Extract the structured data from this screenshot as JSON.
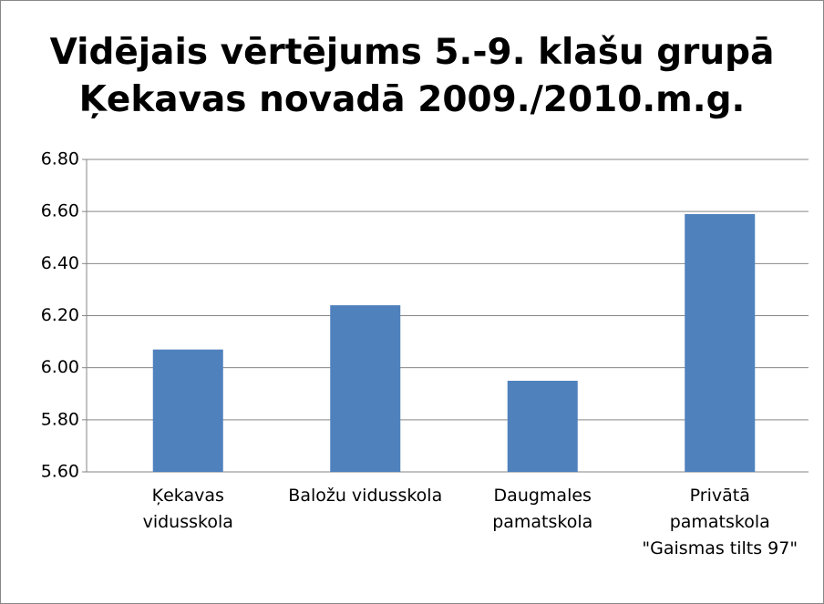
{
  "chart_data": {
    "type": "bar",
    "title": "Vidējais vērtējums 5.-9. klašu grupā\nĶekavas novadā 2009./2010.m.g.",
    "categories": [
      "Ķekavas\nvidusskola",
      "Baložu vidusskola",
      "Daugmales\npamatskola",
      "Privātā\npamatskola\n\"Gaismas tilts 97\""
    ],
    "values": [
      6.07,
      6.24,
      5.95,
      6.59
    ],
    "color": "#4f81bd",
    "ylim": [
      5.6,
      6.8
    ],
    "yticks": [
      {
        "value": 5.6,
        "label": "5.60"
      },
      {
        "value": 5.8,
        "label": "5.80"
      },
      {
        "value": 6.0,
        "label": "6.00"
      },
      {
        "value": 6.2,
        "label": "6.20"
      },
      {
        "value": 6.4,
        "label": "6.40"
      },
      {
        "value": 6.6,
        "label": "6.60"
      },
      {
        "value": 6.8,
        "label": "6.80"
      }
    ],
    "grid": true
  }
}
